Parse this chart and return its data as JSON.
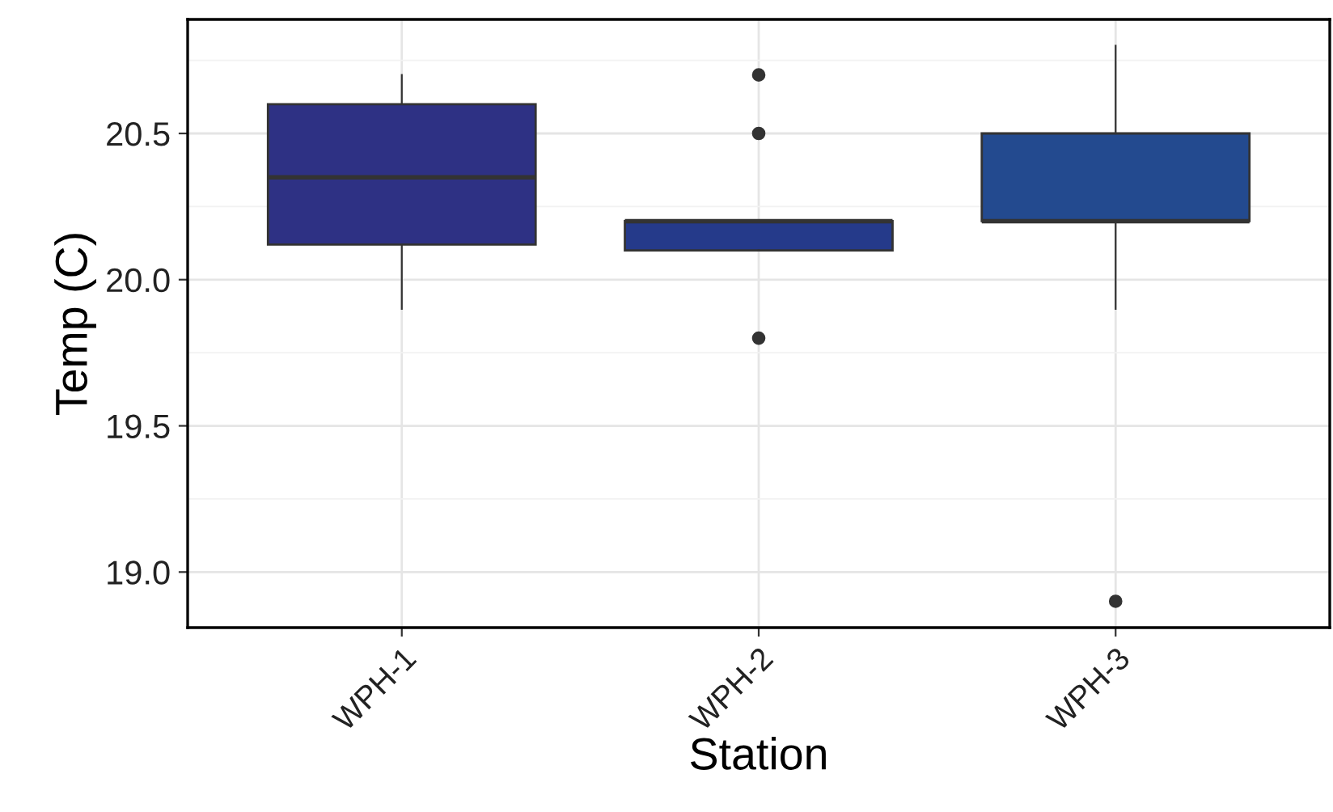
{
  "chart_data": {
    "type": "box",
    "xlabel": "Station",
    "ylabel": "Temp (C)",
    "categories": [
      "WPH-1",
      "WPH-2",
      "WPH-3"
    ],
    "colors": [
      "#2e3184",
      "#253a8a",
      "#234a8f"
    ],
    "boxes": [
      {
        "low": 19.9,
        "q1": 20.12,
        "median": 20.35,
        "q3": 20.6,
        "high": 20.7
      },
      {
        "low": 20.1,
        "q1": 20.1,
        "median": 20.2,
        "q3": 20.2,
        "high": 20.2,
        "outliers": [
          20.7,
          20.5,
          19.8
        ]
      },
      {
        "low": 19.9,
        "q1": 20.2,
        "median": 20.2,
        "q3": 20.5,
        "high": 20.8,
        "outliers": [
          18.9
        ]
      }
    ],
    "ylim": [
      18.81,
      20.89
    ],
    "yticks": [
      {
        "value": 19.0,
        "label": "19.0"
      },
      {
        "value": 19.25,
        "label": null
      },
      19.5,
      {
        "value": 19.75,
        "label": null
      },
      {
        "value": 20.0,
        "label": "20.0"
      },
      {
        "value": 20.25,
        "label": null
      },
      20.5,
      {
        "value": 20.75,
        "label": null
      }
    ],
    "grid": true
  }
}
